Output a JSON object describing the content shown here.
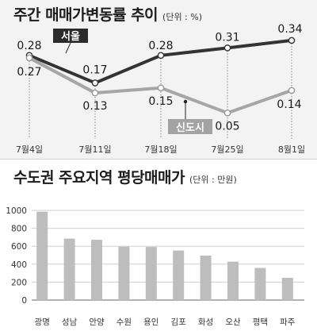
{
  "weekly": {
    "title": "주간 매매가변동률 추이",
    "unit": "(단위 : %)",
    "chart_data": {
      "type": "line",
      "categories": [
        "7월4일",
        "7월11일",
        "7월18일",
        "7월25일",
        "8월1일"
      ],
      "series": [
        {
          "name": "서울",
          "values": [
            0.28,
            0.17,
            0.28,
            0.31,
            0.34
          ],
          "color": "#333333"
        },
        {
          "name": "신도시",
          "values": [
            0.27,
            0.13,
            0.15,
            0.05,
            0.14
          ],
          "color": "#a6a6a6"
        }
      ],
      "value_labels": [
        [
          "0.28",
          "0.17",
          "0.28",
          "0.31",
          "0.34"
        ],
        [
          "0.27",
          "0.13",
          "0.15",
          "0.05",
          "0.14"
        ]
      ],
      "ylim": [
        0.0,
        0.4
      ],
      "grid": false
    }
  },
  "price": {
    "title": "수도권 주요지역 평당매매가",
    "unit": "(단위 : 만원)",
    "chart_data": {
      "type": "bar",
      "categories": [
        "광명",
        "성남",
        "안양",
        "수원",
        "용인",
        "김포",
        "화성",
        "오산",
        "평택",
        "파주"
      ],
      "values": [
        985,
        685,
        672,
        595,
        592,
        552,
        495,
        428,
        358,
        248
      ],
      "yticks": [
        "0",
        "200",
        "400",
        "600",
        "800",
        "1000"
      ],
      "ylim": [
        0,
        1000
      ],
      "grid": true,
      "bar_color": "#bdbdbd"
    }
  }
}
